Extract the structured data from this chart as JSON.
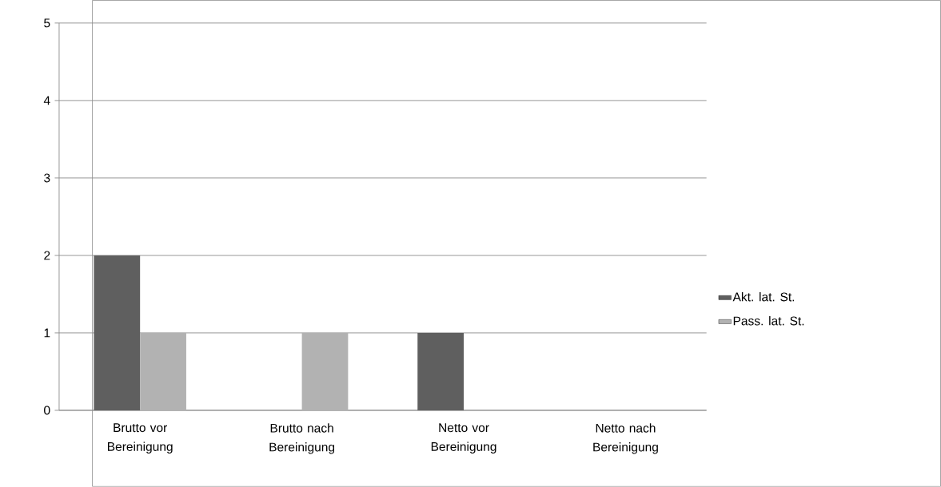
{
  "chart_data": {
    "type": "bar",
    "categories": [
      "Brutto vor Bereinigung",
      "Brutto nach Bereinigung",
      "Netto vor Bereinigung",
      "Netto nach Bereinigung"
    ],
    "series": [
      {
        "name": "Akt. lat. St.",
        "color": "#5f5f5f",
        "values": [
          2,
          0,
          1,
          0
        ]
      },
      {
        "name": "Pass. lat. St.",
        "color": "#b2b2b2",
        "values": [
          1,
          1,
          0,
          0
        ]
      }
    ],
    "ylim": [
      0,
      5
    ],
    "yticks": [
      0,
      1,
      2,
      3,
      4,
      5
    ],
    "grid": "y",
    "legend": "right"
  }
}
